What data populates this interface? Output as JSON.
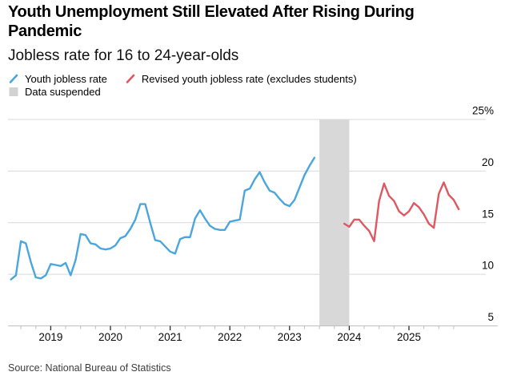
{
  "header": {
    "title": "Youth Unemployment Still Elevated After Rising During Pandemic",
    "subtitle": "Jobless rate for 16 to 24-year-olds"
  },
  "legend": {
    "items": [
      {
        "label": "Youth jobless rate",
        "type": "line",
        "color": "#4AA6DD"
      },
      {
        "label": "Revised youth jobless rate (excludes students)",
        "type": "line",
        "color": "#DF5861"
      },
      {
        "label": "Data suspended",
        "type": "box",
        "color": "#D2D2D2"
      }
    ]
  },
  "source": "Source: National Bureau of Statistics",
  "colors": {
    "blue_series": "#4AA6DD",
    "red_series": "#DF5861",
    "suspended_band": "#D8D8D8",
    "gridline": "#D9D9D9",
    "axis_line": "#BFBFBF",
    "minor_tick": "#BFBFBF",
    "year_tick": "#2B2B2B",
    "label_text": "#0A0A0A"
  },
  "chart_data": {
    "type": "line",
    "title": "Youth Unemployment Still Elevated After Rising During Pandemic",
    "subtitle": "Jobless rate for 16 to 24-year-olds",
    "source": "Source: National Bureau of Statistics",
    "unit": "%",
    "ylim": [
      5,
      25
    ],
    "y_ticks": [
      25,
      20,
      15,
      10,
      5
    ],
    "y_tick_labels": [
      "25%",
      "20",
      "15",
      "10",
      "5"
    ],
    "x_tick_years": [
      2019,
      2020,
      2021,
      2022,
      2023,
      2024,
      2025
    ],
    "x_minor_tick_step_years": 0.25,
    "grid": true,
    "legend_position": "top",
    "band": {
      "label": "Data suspended",
      "x_from": 2023.5,
      "x_to": 2024.0,
      "color": "#D8D8D8"
    },
    "series": [
      {
        "name": "Youth jobless rate",
        "color": "#4AA6DD",
        "first_month": "2018-05",
        "x_start": 2018.3333,
        "x_step": 0.0833333,
        "values": [
          9.5,
          9.9,
          13.2,
          13.0,
          11.2,
          9.7,
          9.6,
          9.9,
          11.0,
          10.9,
          10.8,
          11.1,
          9.9,
          11.4,
          13.9,
          13.8,
          13.0,
          12.9,
          12.5,
          12.4,
          12.5,
          12.8,
          13.5,
          13.7,
          14.4,
          15.3,
          16.8,
          16.8,
          15.0,
          13.3,
          13.2,
          12.7,
          12.2,
          12.0,
          13.4,
          13.6,
          13.6,
          15.4,
          16.2,
          15.4,
          14.7,
          14.4,
          14.3,
          14.3,
          15.1,
          15.2,
          15.3,
          18.1,
          18.3,
          19.2,
          19.9,
          18.9,
          18.1,
          17.9,
          17.3,
          16.8,
          16.6,
          17.2,
          18.4,
          19.6,
          20.5,
          21.3
        ]
      },
      {
        "name": "Revised youth jobless rate (excludes students)",
        "color": "#DF5861",
        "first_month": "2023-12",
        "x_start": 2023.9167,
        "x_step": 0.0833333,
        "values": [
          14.9,
          14.6,
          15.3,
          15.3,
          14.7,
          14.2,
          13.2,
          17.1,
          18.8,
          17.6,
          17.1,
          16.1,
          15.7,
          16.1,
          16.9,
          16.5,
          15.8,
          14.9,
          14.5,
          17.8,
          18.9,
          17.7,
          17.2,
          16.3
        ]
      }
    ]
  }
}
